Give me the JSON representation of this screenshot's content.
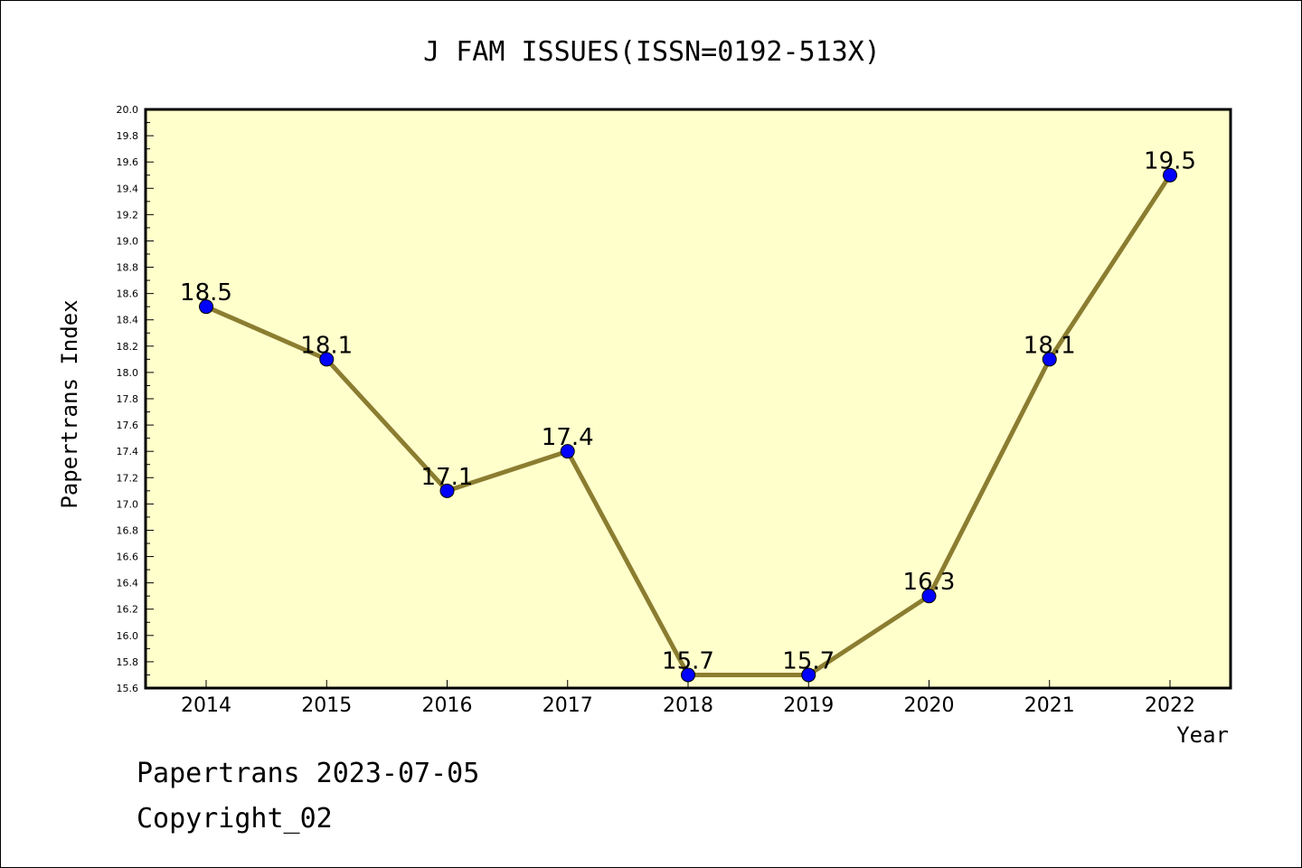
{
  "chart_data": {
    "type": "line",
    "title": "J FAM ISSUES(ISSN=0192-513X)",
    "xlabel": "Year",
    "ylabel": "Papertrans Index",
    "categories": [
      "2014",
      "2015",
      "2016",
      "2017",
      "2018",
      "2019",
      "2020",
      "2021",
      "2022"
    ],
    "values": [
      18.5,
      18.1,
      17.1,
      17.4,
      15.7,
      15.7,
      16.3,
      18.1,
      19.5
    ],
    "data_labels": [
      "18.5",
      "18.1",
      "17.1",
      "17.4",
      "15.7",
      "15.7",
      "16.3",
      "18.1",
      "19.5"
    ],
    "ylim": [
      15.6,
      20.0
    ],
    "ytick_step": 0.2,
    "grid": false,
    "legend": "none",
    "colors": {
      "plot_background": "#ffffcc",
      "line": "#8b7d30",
      "marker": "#0000ff",
      "marker_edge": "#000000"
    }
  },
  "footer": {
    "line1": "Papertrans 2023-07-05",
    "line2": "Copyright_02"
  }
}
